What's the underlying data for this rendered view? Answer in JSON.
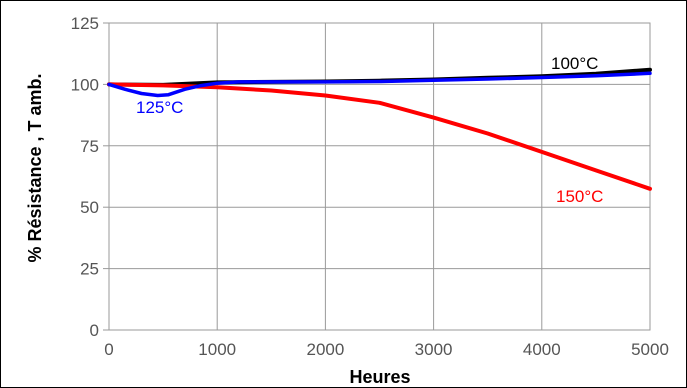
{
  "chart_data": {
    "type": "line",
    "title": "",
    "xlabel": "Heures",
    "ylabel": "% Résistance , T amb.",
    "xlim": [
      0,
      5000
    ],
    "ylim": [
      0,
      125
    ],
    "x_ticks": [
      0,
      1000,
      2000,
      3000,
      4000,
      5000
    ],
    "y_ticks": [
      0,
      25,
      50,
      75,
      100,
      125
    ],
    "grid": true,
    "legend": "inline labels near curves",
    "series": [
      {
        "name": "100°C",
        "color": "#000000",
        "points": [
          [
            0,
            100
          ],
          [
            500,
            99.8
          ],
          [
            1000,
            100.8
          ],
          [
            1500,
            101
          ],
          [
            2000,
            101.2
          ],
          [
            2500,
            101.5
          ],
          [
            3000,
            102
          ],
          [
            3500,
            102.7
          ],
          [
            4000,
            103.3
          ],
          [
            4500,
            104.3
          ],
          [
            5000,
            106
          ]
        ]
      },
      {
        "name": "125°C",
        "color": "#0000ff",
        "points": [
          [
            0,
            100
          ],
          [
            150,
            98
          ],
          [
            300,
            96.3
          ],
          [
            450,
            95.5
          ],
          [
            550,
            95.8
          ],
          [
            700,
            98
          ],
          [
            850,
            99.5
          ],
          [
            1000,
            100.5
          ],
          [
            1200,
            101
          ],
          [
            1500,
            101
          ],
          [
            2000,
            101
          ],
          [
            2500,
            101.2
          ],
          [
            3000,
            101.7
          ],
          [
            3500,
            102.2
          ],
          [
            4000,
            102.8
          ],
          [
            4500,
            103.5
          ],
          [
            5000,
            104.5
          ]
        ]
      },
      {
        "name": "150°C",
        "color": "#ff0000",
        "points": [
          [
            0,
            100
          ],
          [
            500,
            99.6
          ],
          [
            1000,
            98.8
          ],
          [
            1500,
            97.5
          ],
          [
            2000,
            95.5
          ],
          [
            2500,
            92.5
          ],
          [
            3000,
            86.5
          ],
          [
            3500,
            80
          ],
          [
            4000,
            72.5
          ],
          [
            4500,
            65
          ],
          [
            5000,
            57.5
          ]
        ]
      }
    ]
  }
}
